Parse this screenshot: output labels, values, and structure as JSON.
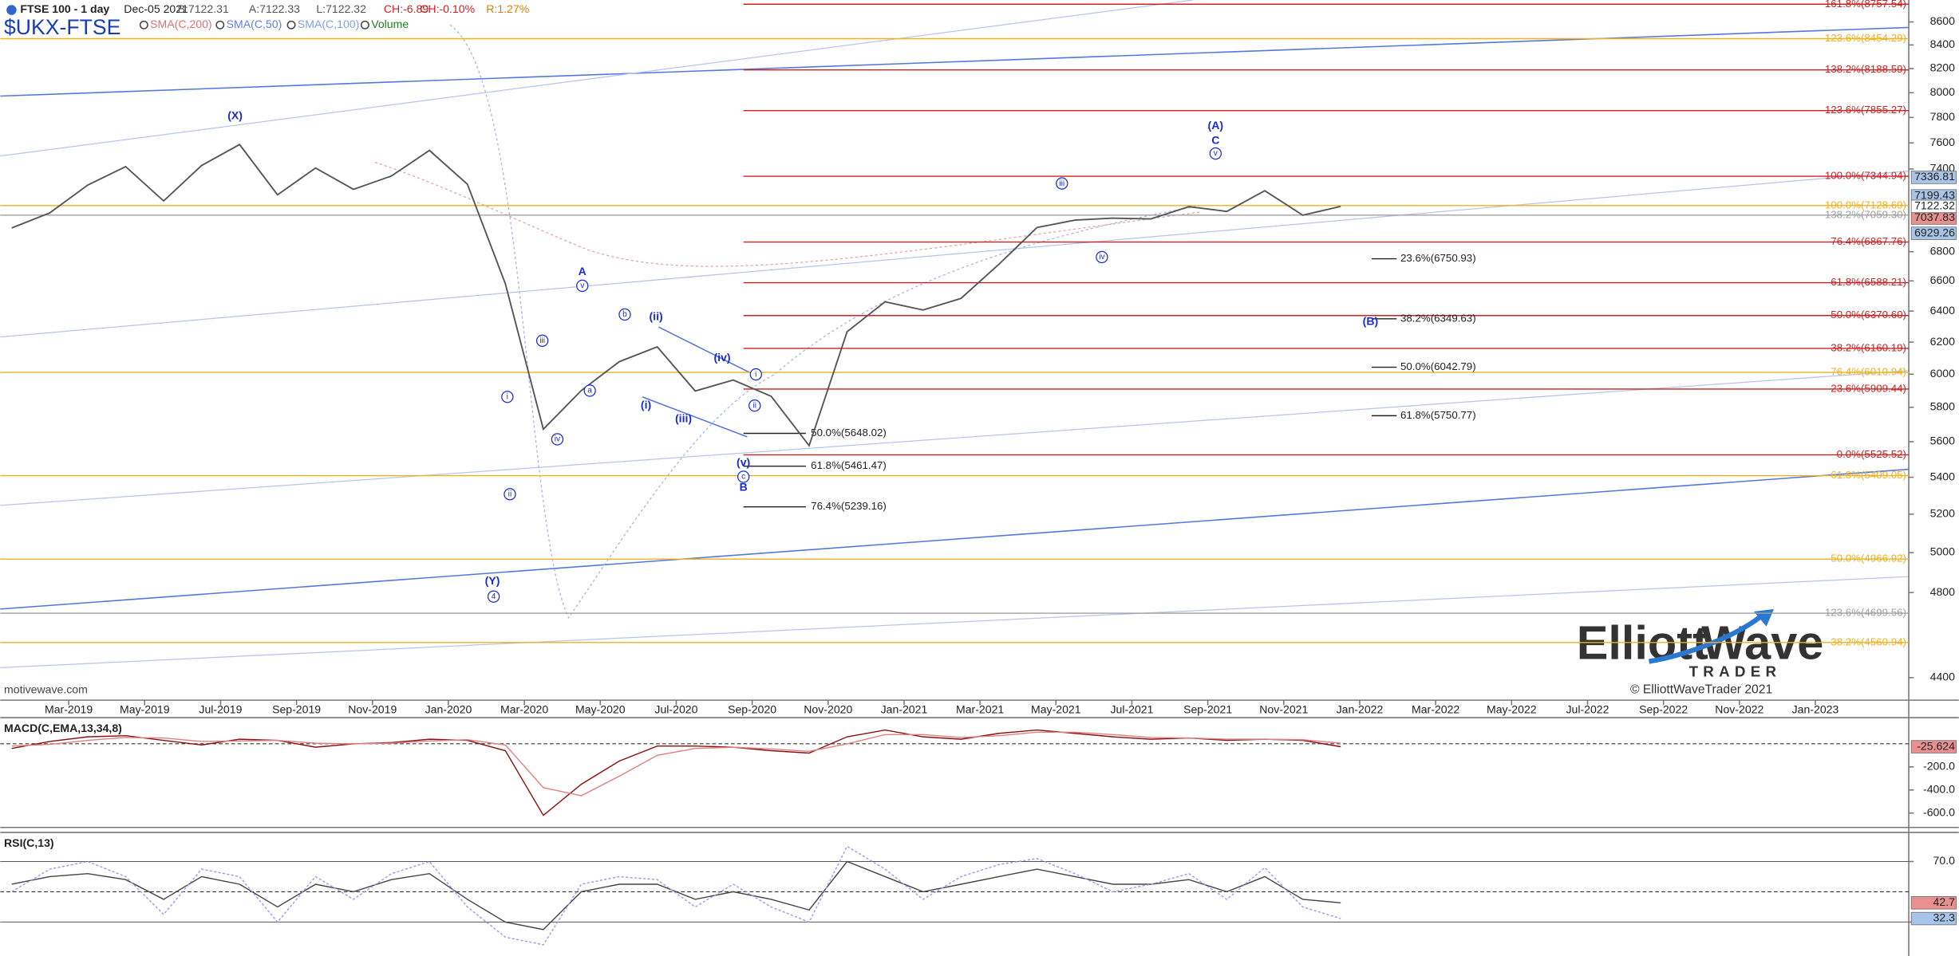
{
  "chart_data": [
    {
      "type": "line",
      "title": "$UKX-FTSE",
      "subtitle": "FTSE 100 - 1 day",
      "date": "Dec-05 2021",
      "quote": [
        "B:7122.31",
        "A:7122.33",
        "L:7122.32",
        "CH:-6.89",
        "CH:-0.10%",
        "R:1.27%"
      ],
      "indicators": [
        "SMA(C,200)",
        "SMA(C,50)",
        "SMA(C,100)",
        "Volume"
      ],
      "watermark": "motivewave.com",
      "logo": {
        "word1": "Elliott",
        "word2": "Wave",
        "sub": "TRADER",
        "copyright": "© ElliottWaveTrader 2021"
      },
      "log_scale": true,
      "color": "#555555",
      "x": [
        "Jan-2019",
        "Feb-2019",
        "Mar-2019",
        "Apr-2019",
        "May-2019",
        "Jun-2019",
        "Jul-2019",
        "Aug-2019",
        "Sep-2019",
        "Oct-2019",
        "Nov-2019",
        "Dec-2019",
        "Jan-2020",
        "Feb-2020",
        "Mar-2020",
        "Apr-2020",
        "May-2020",
        "Jun-2020",
        "Jul-2020",
        "Aug-2020",
        "Sep-2020",
        "Oct-2020",
        "Nov-2020",
        "Dec-2020",
        "Jan-2021",
        "Feb-2021",
        "Mar-2021",
        "Apr-2021",
        "May-2021",
        "Jun-2021",
        "Jul-2021",
        "Aug-2021",
        "Sep-2021",
        "Oct-2021",
        "Nov-2021",
        "Dec-2021"
      ],
      "values": [
        6968,
        7075,
        7279,
        7418,
        7162,
        7426,
        7587,
        7207,
        7408,
        7248,
        7347,
        7542,
        7286,
        6581,
        5672,
        5901,
        6077,
        6170,
        5898,
        5964,
        5866,
        5577,
        6266,
        6461,
        6407,
        6483,
        6714,
        6970,
        7023,
        7037,
        7032,
        7120,
        7086,
        7238,
        7059,
        7122.32
      ],
      "xlim": [
        "Jan-2019",
        "Mar-2023"
      ],
      "xticks": [
        "Mar-2019",
        "May-2019",
        "Jul-2019",
        "Sep-2019",
        "Nov-2019",
        "Jan-2020",
        "Mar-2020",
        "May-2020",
        "Jul-2020",
        "Sep-2020",
        "Nov-2020",
        "Jan-2021",
        "Mar-2021",
        "May-2021",
        "Jul-2021",
        "Sep-2021",
        "Nov-2021",
        "Jan-2022",
        "Mar-2022",
        "May-2022",
        "Jul-2022",
        "Sep-2022",
        "Nov-2022",
        "Jan-2023"
      ],
      "ylim": [
        4300,
        8795
      ],
      "yticks": [
        4400,
        4800,
        5000,
        5200,
        5400,
        5600,
        5800,
        6000,
        6200,
        6400,
        6600,
        6800,
        7400,
        7600,
        7800,
        8000,
        8200,
        8400,
        8600
      ],
      "levels_red": [
        {
          "value": 8757.54,
          "label": "161.8%(8757.54)"
        },
        {
          "value": 8188.59,
          "label": "138.2%(8188.59)"
        },
        {
          "value": 7855.27,
          "label": "123.6%(7855.27)"
        },
        {
          "value": 7344.94,
          "label": "100.0%(7344.94)"
        },
        {
          "value": 6867.76,
          "label": "76.4%(6867.76)"
        },
        {
          "value": 6588.21,
          "label": "61.8%(6588.21)"
        },
        {
          "value": 6370.6,
          "label": "50.0%(6370.60)"
        },
        {
          "value": 6160.19,
          "label": "38.2%(6160.19)"
        },
        {
          "value": 5909.44,
          "label": "23.6%(5909.44)"
        },
        {
          "value": 5525.52,
          "label": "0.0%(5525.52)"
        }
      ],
      "red_color": "#cc2222",
      "levels_orange": [
        {
          "value": 8454.29,
          "label": "123.6%(8454.29)"
        },
        {
          "value": 7128.69,
          "label": "100.0%(7128.69)"
        },
        {
          "value": 6010.94,
          "label": "76.4%(6010.94)"
        },
        {
          "value": 5409.05,
          "label": "61.8%(5409.05)"
        },
        {
          "value": 4966.92,
          "label": "50.0%(4966.92)"
        },
        {
          "value": 4560.94,
          "label": "38.2%(4560.94)"
        }
      ],
      "orange_color": "#f0b020",
      "levels_gray": [
        {
          "value": 7059.3,
          "label": "138.2%(7059.30)"
        },
        {
          "value": 4699.56,
          "label": "123.6%(4699.56)"
        }
      ],
      "gray_color": "#a0a0a0",
      "levels_black_left": [
        {
          "value": 5648.02,
          "label": "50.0%(5648.02)"
        },
        {
          "value": 5461.47,
          "label": "61.8%(5461.47)"
        },
        {
          "value": 5239.16,
          "label": "76.4%(5239.16)"
        }
      ],
      "levels_black_right": [
        {
          "value": 6750.93,
          "label": "23.6%(6750.93)"
        },
        {
          "value": 6349.63,
          "label": "38.2%(6349.63)"
        },
        {
          "value": 6042.79,
          "label": "50.0%(6042.79)"
        },
        {
          "value": 5750.77,
          "label": "61.8%(5750.77)"
        }
      ],
      "price_tags": [
        {
          "value": 7336.81,
          "color": "#a8c4e8"
        },
        {
          "value": 7199.43,
          "color": "#a8c4e8"
        },
        {
          "value": 7037.83,
          "color": "#e89090"
        },
        {
          "value": 6929.26,
          "color": "#a8c4e8"
        }
      ],
      "wave_labels": [
        "(X)",
        "A",
        "v",
        "iii",
        "iv",
        "a",
        "b",
        "i",
        "ii",
        "(Y)",
        "4",
        "(ii)",
        "(i)",
        "(iii)",
        "(iv)",
        "(v)",
        "c",
        "B",
        "i",
        "ii",
        "iii",
        "iv",
        "(A)",
        "C",
        "v",
        "(B)"
      ],
      "wave_color": "#1a2ccc"
    },
    {
      "type": "line",
      "title": "MACD(C,EMA,13,34,8)",
      "series": [
        {
          "color": "#8b1010",
          "values": [
            -40,
            20,
            60,
            70,
            30,
            -10,
            40,
            30,
            -30,
            0,
            10,
            40,
            30,
            -60,
            -620,
            -350,
            -150,
            -20,
            -20,
            -30,
            -60,
            -80,
            60,
            120,
            60,
            40,
            90,
            120,
            90,
            60,
            40,
            50,
            30,
            40,
            30,
            -25.624
          ]
        },
        {
          "color": "#e08080",
          "values": [
            -20,
            -5,
            30,
            55,
            50,
            20,
            25,
            30,
            5,
            0,
            5,
            25,
            35,
            -10,
            -380,
            -450,
            -280,
            -100,
            -40,
            -30,
            -45,
            -65,
            0,
            80,
            80,
            55,
            70,
            100,
            100,
            80,
            55,
            50,
            40,
            40,
            35,
            5
          ]
        }
      ],
      "ylim": [
        -692,
        205
      ],
      "yticks": [
        {
          "value": -200,
          "label": "-200.0"
        },
        {
          "value": -400,
          "label": "-400.0"
        },
        {
          "value": -600,
          "label": "-600.0"
        }
      ]
    },
    {
      "type": "line",
      "title": "RSI(C,13)",
      "series": [
        {
          "color": "#444444",
          "values": [
            55,
            60,
            62,
            58,
            45,
            60,
            55,
            40,
            55,
            50,
            58,
            62,
            45,
            30,
            25,
            50,
            55,
            55,
            45,
            50,
            45,
            38,
            70,
            60,
            50,
            55,
            60,
            65,
            60,
            55,
            55,
            58,
            50,
            60,
            45,
            42.7
          ]
        },
        {
          "color": "#9a9af0",
          "values": [
            50,
            65,
            70,
            60,
            35,
            65,
            60,
            30,
            60,
            45,
            62,
            70,
            40,
            20,
            15,
            55,
            60,
            58,
            40,
            55,
            40,
            30,
            80,
            65,
            45,
            60,
            68,
            72,
            62,
            50,
            55,
            62,
            45,
            66,
            40,
            32.3
          ]
        }
      ],
      "ylim": [
        9.2,
        88.4
      ],
      "yticks": [
        {
          "value": 70,
          "label": "70.0"
        },
        {
          "value": 30,
          "label": "30.0"
        }
      ]
    }
  ]
}
